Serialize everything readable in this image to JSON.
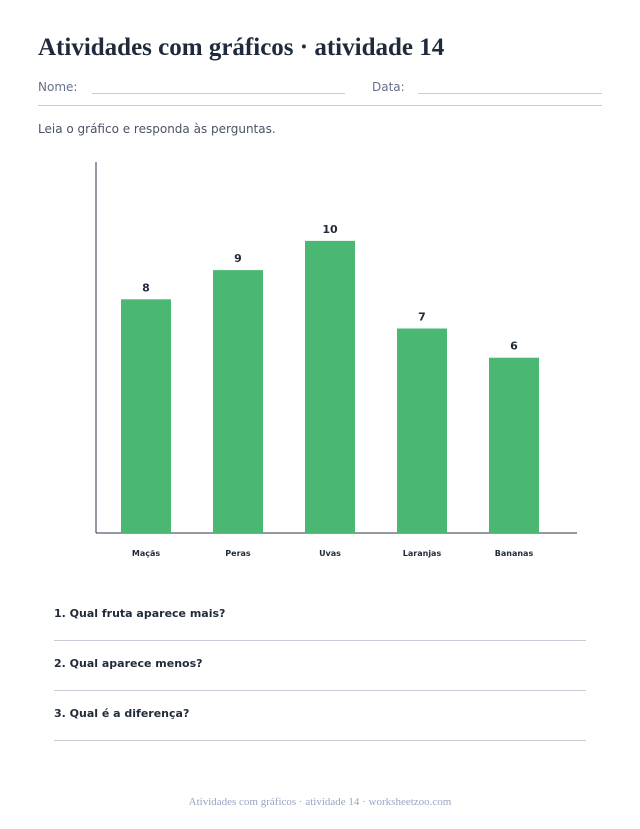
{
  "page": {
    "title": "Atividades com gráficos · atividade 14",
    "name_label": "Nome:",
    "date_label": "Data:",
    "instructions": "Leia o gráfico e responda às perguntas.",
    "footer": "Atividades com gráficos · atividade 14 · worksheetzoo.com"
  },
  "colors": {
    "bar": "#4ab873",
    "axis": "#2b3346",
    "text": "#1f2a3a"
  },
  "chart_data": {
    "type": "bar",
    "categories": [
      "Maçãs",
      "Peras",
      "Uvas",
      "Laranjas",
      "Bananas"
    ],
    "values": [
      8,
      9,
      10,
      7,
      6
    ],
    "ylim": [
      0,
      12.7
    ],
    "grid": false,
    "data_labels": true
  },
  "questions": [
    {
      "text": "1. Qual fruta aparece mais?"
    },
    {
      "text": "2. Qual aparece menos?"
    },
    {
      "text": "3. Qual é a diferença?"
    }
  ]
}
